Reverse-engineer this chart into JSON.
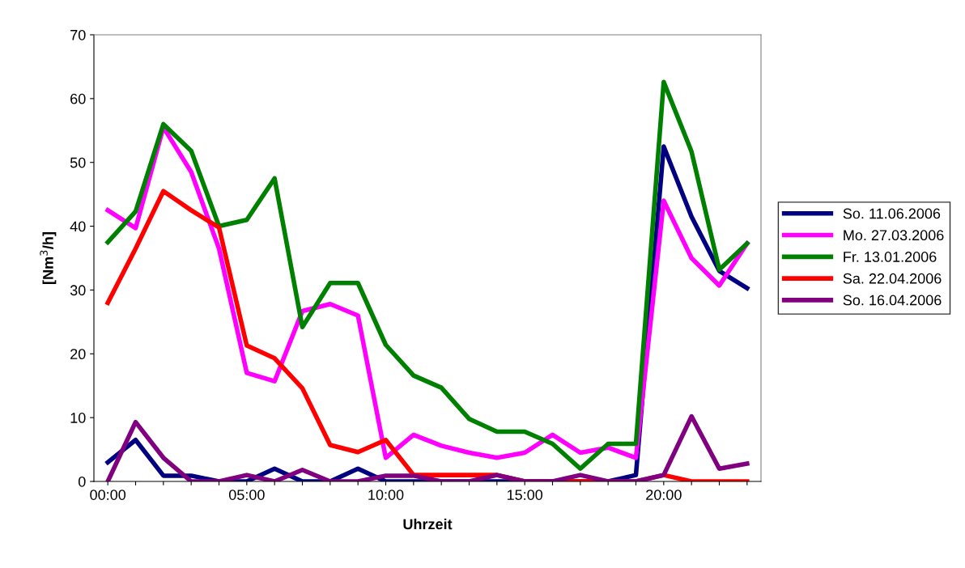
{
  "chart_data": {
    "type": "line",
    "xlabel": "Uhrzeit",
    "ylabel": "[Nm$^{3}$/h]",
    "categories": [
      "00:00",
      null,
      null,
      null,
      null,
      "05:00",
      null,
      null,
      null,
      null,
      "10:00",
      null,
      null,
      null,
      null,
      "15:00",
      null,
      null,
      null,
      null,
      "20:00",
      null,
      null,
      null
    ],
    "ylim": [
      0,
      70
    ],
    "yticks": [
      0,
      10,
      20,
      30,
      40,
      50,
      60,
      70
    ],
    "grid": false,
    "legend": "right",
    "line_style": "solid",
    "series": [
      {
        "name": "So. 11.06.2006",
        "color": "#000080",
        "values": [
          3.0,
          6.5,
          0.9,
          0.9,
          0,
          0,
          2,
          0,
          0,
          2,
          0,
          0,
          0,
          0,
          0,
          0,
          0,
          0,
          0,
          1,
          52.5,
          41.5,
          33,
          30.3
        ]
      },
      {
        "name": "Mo. 27.03.2006",
        "color": "#ff00ff",
        "values": [
          42.5,
          39.7,
          55.5,
          48.5,
          36.5,
          17,
          15.7,
          26.7,
          27.8,
          26,
          3.7,
          7.3,
          5.6,
          4.5,
          3.7,
          4.5,
          7.3,
          4.5,
          5.3,
          3.7,
          44,
          35,
          30.7,
          37.3
        ]
      },
      {
        "name": "Fr. 13.01.2006",
        "color": "#008000",
        "values": [
          37.5,
          42.3,
          56,
          51.8,
          40,
          41,
          47.5,
          24.2,
          31.1,
          31.1,
          21.4,
          16.6,
          14.7,
          9.8,
          7.8,
          7.8,
          5.9,
          2,
          5.9,
          5.9,
          62.6,
          51.7,
          33.2,
          37.3
        ]
      },
      {
        "name": "Sa. 22.04.2006",
        "color": "#ff0000",
        "values": [
          28,
          36.5,
          45.5,
          42.5,
          39.8,
          21.3,
          19.3,
          14.6,
          5.7,
          4.6,
          6.5,
          1,
          1,
          1,
          1,
          0,
          0,
          0,
          0,
          0,
          1,
          0,
          0,
          0
        ]
      },
      {
        "name": "So. 16.04.2006",
        "color": "#800080",
        "values": [
          0,
          9.3,
          3.7,
          0,
          0,
          1,
          0,
          1.8,
          0,
          0,
          0.9,
          0.9,
          0,
          0,
          1,
          0,
          0,
          1,
          0,
          0,
          1,
          10.2,
          2,
          2.8
        ]
      }
    ]
  }
}
